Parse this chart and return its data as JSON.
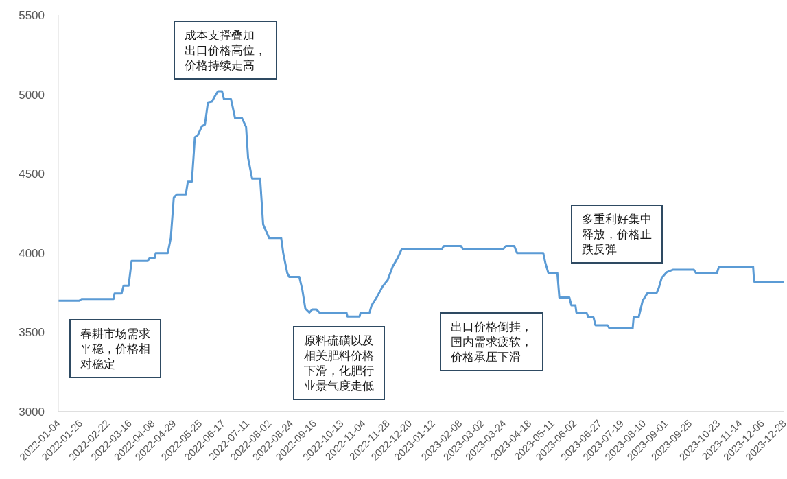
{
  "chart_data": {
    "type": "line",
    "x": [
      "2022-01-04",
      "2022-01-25",
      "2022-01-27",
      "2022-02-28",
      "2022-03-01",
      "2022-03-08",
      "2022-03-10",
      "2022-03-15",
      "2022-03-18",
      "2022-04-03",
      "2022-04-05",
      "2022-04-10",
      "2022-04-11",
      "2022-04-23",
      "2022-04-26",
      "2022-04-29",
      "2022-05-02",
      "2022-05-11",
      "2022-05-13",
      "2022-05-17",
      "2022-05-20",
      "2022-05-23",
      "2022-05-27",
      "2022-05-30",
      "2022-06-02",
      "2022-06-06",
      "2022-06-09",
      "2022-06-12",
      "2022-06-16",
      "2022-06-18",
      "2022-06-25",
      "2022-06-27",
      "2022-06-29",
      "2022-07-06",
      "2022-07-10",
      "2022-07-12",
      "2022-07-16",
      "2022-07-24",
      "2022-07-27",
      "2022-08-02",
      "2022-08-14",
      "2022-08-16",
      "2022-08-20",
      "2022-08-22",
      "2022-09-01",
      "2022-09-04",
      "2022-09-07",
      "2022-09-11",
      "2022-09-14",
      "2022-09-18",
      "2022-09-21",
      "2022-10-18",
      "2022-10-19",
      "2022-10-31",
      "2022-11-01",
      "2022-11-10",
      "2022-11-12",
      "2022-11-17",
      "2022-11-23",
      "2022-11-28",
      "2022-12-03",
      "2022-12-08",
      "2022-12-12",
      "2023-01-21",
      "2023-01-23",
      "2023-02-09",
      "2023-02-11",
      "2023-03-23",
      "2023-03-26",
      "2023-04-03",
      "2023-04-06",
      "2023-05-02",
      "2023-05-04",
      "2023-05-07",
      "2023-05-16",
      "2023-05-18",
      "2023-05-28",
      "2023-05-30",
      "2023-06-03",
      "2023-06-04",
      "2023-06-14",
      "2023-06-16",
      "2023-06-21",
      "2023-06-23",
      "2023-07-05",
      "2023-07-07",
      "2023-07-30",
      "2023-07-31",
      "2023-08-05",
      "2023-08-09",
      "2023-08-14",
      "2023-08-23",
      "2023-08-25",
      "2023-08-28",
      "2023-09-02",
      "2023-09-08",
      "2023-09-29",
      "2023-10-01",
      "2023-10-22",
      "2023-10-24",
      "2023-11-27",
      "2023-11-28",
      "2023-12-28"
    ],
    "series": [
      {
        "color": "#5b9bd5",
        "values": [
          3700,
          3700,
          3710,
          3710,
          3745,
          3745,
          3795,
          3795,
          3950,
          3950,
          3970,
          3970,
          4000,
          4000,
          4095,
          4350,
          4370,
          4370,
          4450,
          4450,
          4730,
          4745,
          4800,
          4810,
          4950,
          4955,
          4990,
          5020,
          5020,
          4970,
          4970,
          4910,
          4850,
          4850,
          4795,
          4600,
          4470,
          4470,
          4180,
          4095,
          4095,
          4000,
          3875,
          3850,
          3850,
          3770,
          3650,
          3625,
          3645,
          3645,
          3625,
          3625,
          3600,
          3600,
          3625,
          3625,
          3670,
          3720,
          3790,
          3830,
          3915,
          3970,
          4025,
          4025,
          4045,
          4045,
          4025,
          4025,
          4045,
          4045,
          4000,
          4000,
          3940,
          3875,
          3875,
          3720,
          3720,
          3670,
          3670,
          3625,
          3625,
          3595,
          3595,
          3545,
          3545,
          3525,
          3525,
          3595,
          3595,
          3700,
          3750,
          3750,
          3780,
          3845,
          3880,
          3895,
          3895,
          3875,
          3875,
          3915,
          3915,
          3820,
          3820
        ]
      }
    ],
    "xlim": [
      "2022-01-04",
      "2023-12-28"
    ],
    "xticks": [
      "2022-01-04",
      "2022-01-26",
      "2022-02-22",
      "2022-03-16",
      "2022-04-08",
      "2022-04-29",
      "2022-05-25",
      "2022-06-17",
      "2022-07-11",
      "2022-08-02",
      "2022-08-24",
      "2022-09-16",
      "2022-10-13",
      "2022-11-04",
      "2022-11-28",
      "2022-12-20",
      "2023-01-12",
      "2023-02-08",
      "2023-03-02",
      "2023-03-24",
      "2023-04-18",
      "2023-05-11",
      "2023-06-02",
      "2023-06-27",
      "2023-07-19",
      "2023-08-10",
      "2023-09-01",
      "2023-09-25",
      "2023-10-23",
      "2023-11-14",
      "2023-12-06",
      "2023-12-28"
    ],
    "ylim": [
      3000,
      5500
    ],
    "yticks": [
      3000,
      3500,
      4000,
      4500,
      5000,
      5500
    ],
    "line_style": "solid",
    "annotations": [
      "春耕市场需求平稳，价格相对稳定",
      "成本支撑叠加出口价格高位，价格持续走高",
      "原料硫磺以及相关肥料价格下滑，化肥行业景气度走低",
      "出口价格倒挂，国内需求疲软，价格承压下滑",
      "多重利好集中释放，价格止跌反弹"
    ]
  }
}
